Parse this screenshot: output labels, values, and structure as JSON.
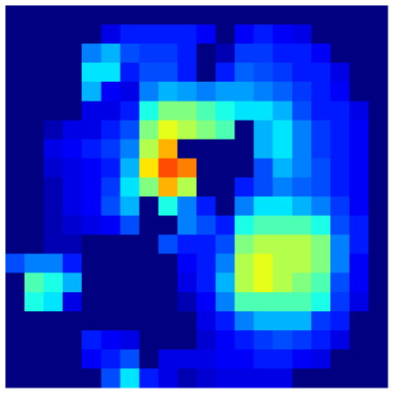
{
  "chart_data": {
    "type": "heatmap",
    "colormap": "jet",
    "zlim": [
      0,
      100
    ],
    "values": [
      [
        0,
        0,
        0,
        0,
        0,
        0,
        0,
        0,
        0,
        0,
        0,
        0,
        0,
        0,
        0,
        0,
        0,
        0,
        0,
        0
      ],
      [
        0,
        0,
        0,
        0,
        0,
        10,
        15,
        15,
        15,
        15,
        12,
        0,
        12,
        15,
        12,
        10,
        0,
        0,
        0,
        0
      ],
      [
        0,
        0,
        0,
        0,
        25,
        30,
        20,
        18,
        18,
        15,
        0,
        5,
        18,
        18,
        15,
        15,
        12,
        0,
        0,
        0
      ],
      [
        0,
        0,
        0,
        0,
        35,
        35,
        15,
        20,
        20,
        15,
        0,
        15,
        22,
        20,
        18,
        15,
        15,
        10,
        0,
        0
      ],
      [
        0,
        0,
        0,
        0,
        30,
        12,
        10,
        25,
        30,
        28,
        25,
        28,
        28,
        25,
        22,
        18,
        15,
        12,
        0,
        0
      ],
      [
        0,
        0,
        0,
        0,
        10,
        10,
        15,
        40,
        50,
        50,
        45,
        40,
        35,
        35,
        30,
        20,
        15,
        15,
        10,
        0
      ],
      [
        0,
        0,
        5,
        10,
        10,
        15,
        20,
        50,
        60,
        55,
        50,
        45,
        0,
        30,
        35,
        25,
        18,
        15,
        12,
        0
      ],
      [
        0,
        0,
        10,
        12,
        15,
        18,
        25,
        55,
        70,
        0,
        0,
        0,
        0,
        30,
        35,
        25,
        18,
        15,
        12,
        0
      ],
      [
        0,
        0,
        8,
        10,
        12,
        15,
        30,
        65,
        80,
        75,
        0,
        0,
        0,
        20,
        30,
        25,
        20,
        15,
        12,
        0
      ],
      [
        0,
        0,
        5,
        10,
        12,
        18,
        35,
        50,
        70,
        55,
        0,
        0,
        15,
        20,
        25,
        22,
        20,
        15,
        12,
        0
      ],
      [
        0,
        0,
        5,
        10,
        12,
        20,
        30,
        0,
        40,
        25,
        15,
        0,
        25,
        35,
        35,
        30,
        25,
        18,
        12,
        0
      ],
      [
        0,
        0,
        5,
        8,
        10,
        12,
        20,
        0,
        0,
        25,
        20,
        15,
        40,
        45,
        45,
        45,
        40,
        20,
        15,
        0
      ],
      [
        0,
        0,
        5,
        5,
        0,
        0,
        0,
        0,
        20,
        15,
        15,
        20,
        50,
        55,
        55,
        55,
        50,
        25,
        15,
        0
      ],
      [
        20,
        25,
        25,
        15,
        0,
        0,
        0,
        0,
        0,
        12,
        15,
        25,
        55,
        60,
        55,
        55,
        50,
        25,
        12,
        0
      ],
      [
        0,
        45,
        40,
        30,
        0,
        0,
        0,
        0,
        0,
        10,
        15,
        30,
        55,
        60,
        55,
        50,
        45,
        20,
        12,
        0
      ],
      [
        0,
        40,
        35,
        10,
        0,
        0,
        0,
        0,
        0,
        5,
        12,
        25,
        45,
        45,
        45,
        45,
        40,
        18,
        10,
        0
      ],
      [
        0,
        0,
        0,
        0,
        0,
        0,
        0,
        0,
        0,
        0,
        10,
        15,
        25,
        30,
        30,
        30,
        18,
        15,
        0,
        0
      ],
      [
        0,
        0,
        0,
        0,
        15,
        12,
        10,
        0,
        0,
        0,
        8,
        12,
        15,
        18,
        20,
        18,
        15,
        10,
        0,
        0
      ],
      [
        0,
        0,
        0,
        0,
        12,
        15,
        20,
        0,
        10,
        10,
        10,
        12,
        12,
        15,
        15,
        12,
        10,
        0,
        0,
        0
      ],
      [
        0,
        0,
        0,
        0,
        0,
        20,
        35,
        15,
        10,
        5,
        8,
        10,
        10,
        10,
        10,
        0,
        0,
        0,
        0,
        0
      ]
    ]
  }
}
